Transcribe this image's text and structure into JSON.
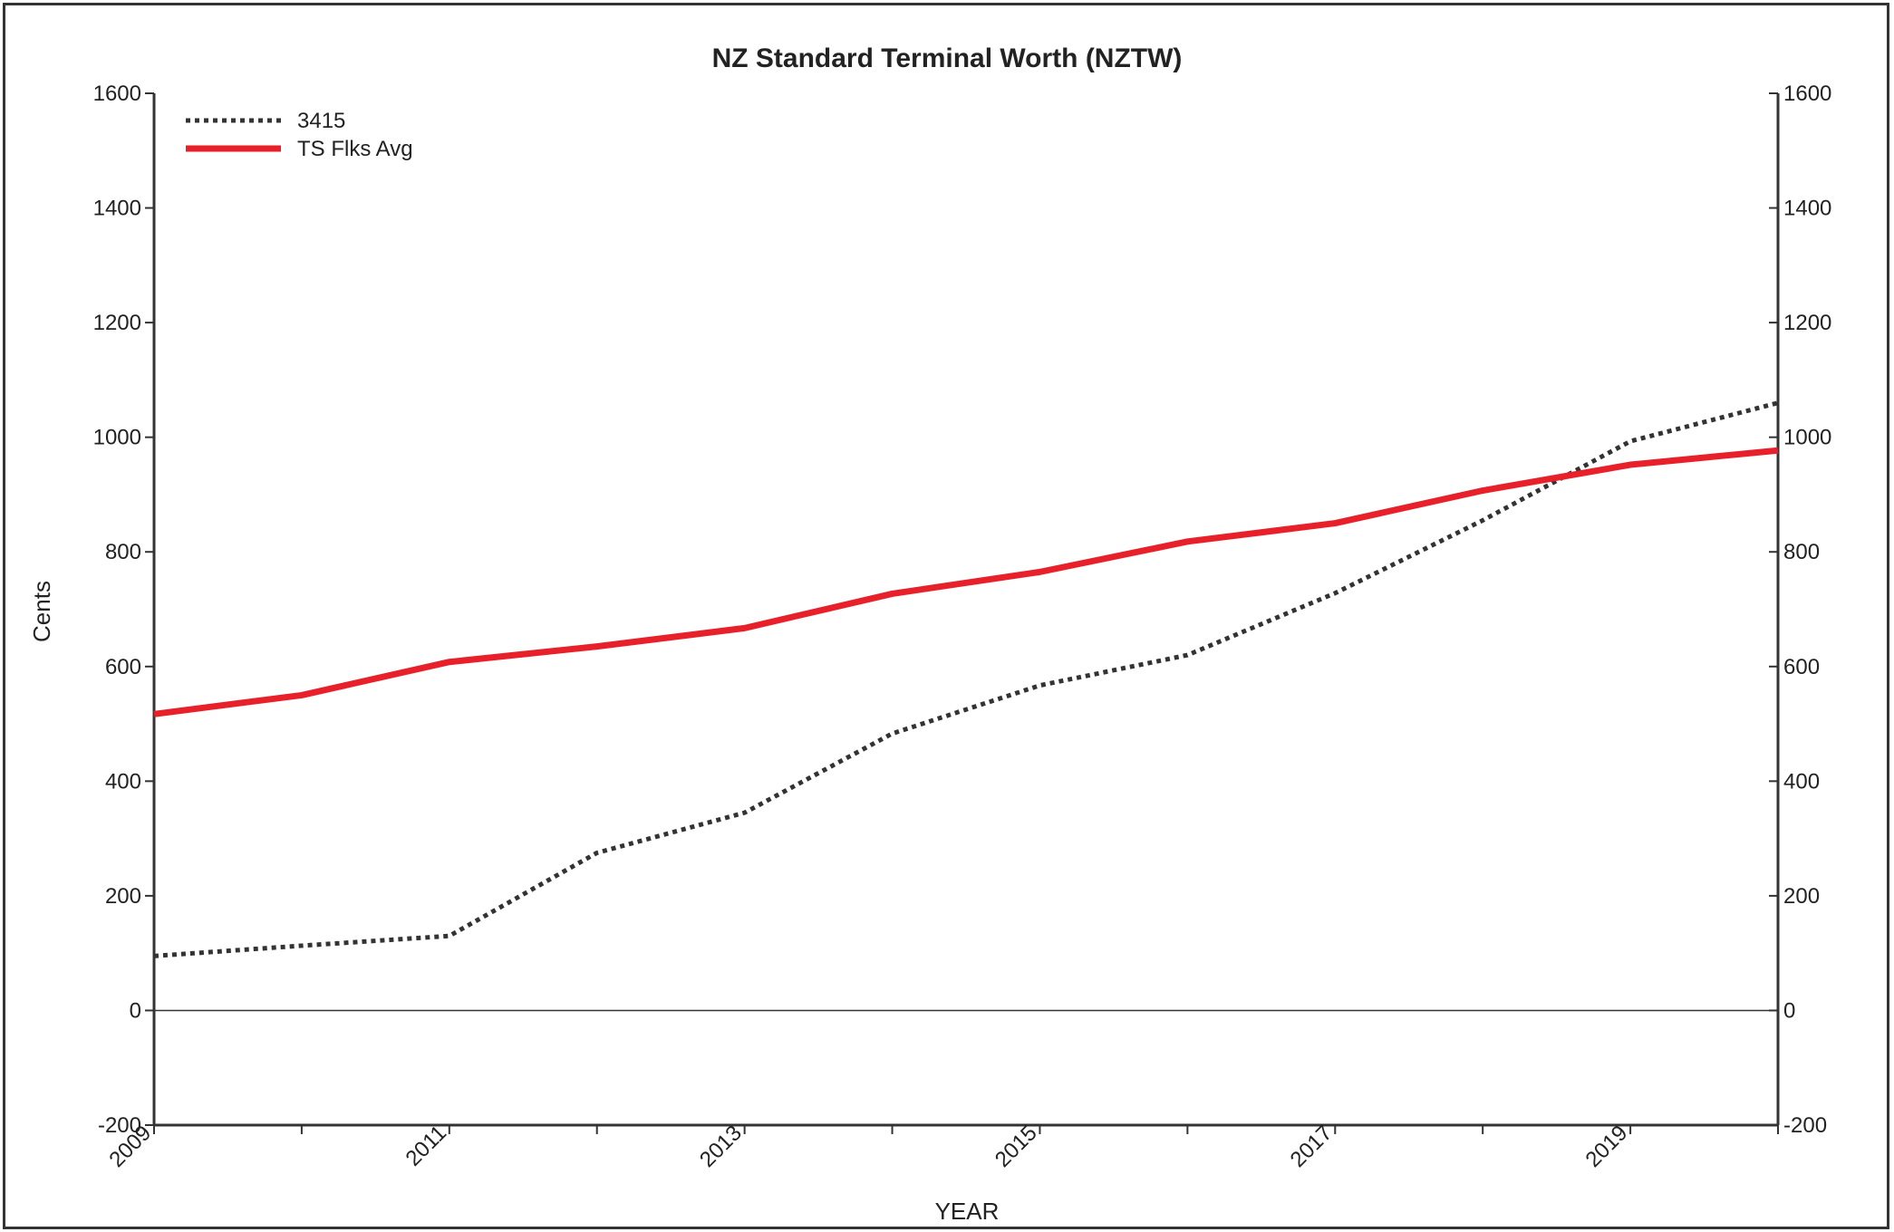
{
  "chart_data": {
    "type": "line",
    "title": "NZ Standard Terminal Worth (NZTW)",
    "xlabel": "YEAR",
    "ylabel": "Cents",
    "x": [
      2009,
      2010,
      2011,
      2012,
      2013,
      2014,
      2015,
      2016,
      2017,
      2018,
      2019,
      2020
    ],
    "xlim": [
      2009,
      2020
    ],
    "xticks_labeled": [
      2009,
      2011,
      2013,
      2015,
      2017,
      2019
    ],
    "ylim": [
      -200,
      1600
    ],
    "yticks": [
      -200,
      0,
      200,
      400,
      600,
      800,
      1000,
      1200,
      1400,
      1600
    ],
    "secondary_y_axis": true,
    "grid": false,
    "legend_position": "top-left",
    "series": [
      {
        "name": "3415",
        "style": "dotted",
        "color": "#333333",
        "values": [
          95,
          113,
          130,
          275,
          345,
          483,
          567,
          620,
          728,
          855,
          993,
          1060
        ]
      },
      {
        "name": "TS Flks Avg",
        "style": "solid",
        "color": "#e8202a",
        "values": [
          517,
          550,
          608,
          635,
          667,
          727,
          765,
          818,
          850,
          907,
          952,
          977
        ]
      }
    ]
  }
}
